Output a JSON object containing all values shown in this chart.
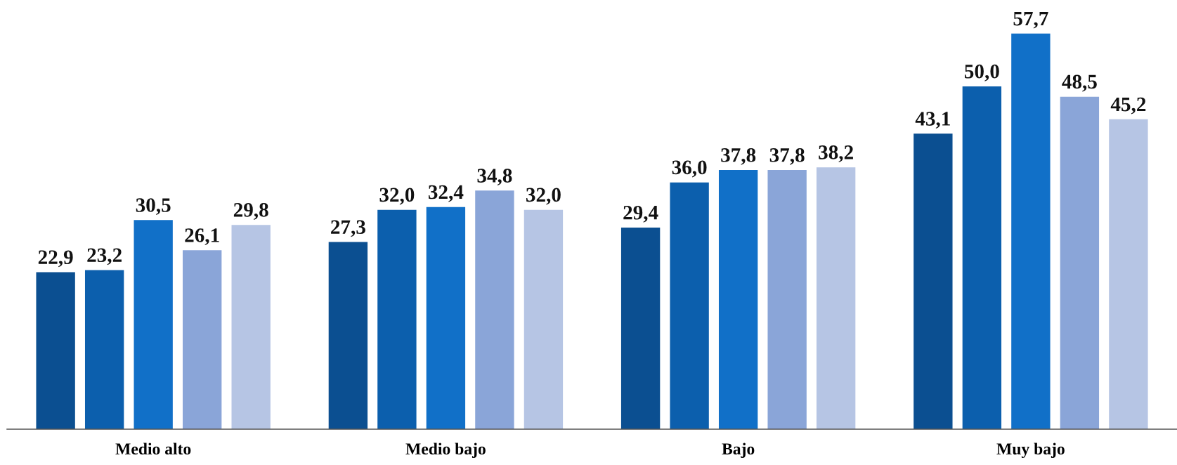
{
  "chart_data": {
    "type": "bar",
    "categories": [
      "Medio alto",
      "Medio bajo",
      "Bajo",
      "Muy bajo"
    ],
    "grid": false,
    "tick_labels": "x",
    "series": [
      {
        "color": "#0b4f91",
        "values": [
          22.9,
          27.3,
          29.4,
          43.1
        ],
        "value_labels": [
          "22,9",
          "27,3",
          "29,4",
          "43,1"
        ]
      },
      {
        "color": "#0c5fad",
        "values": [
          23.2,
          32.0,
          36.0,
          50.0
        ],
        "value_labels": [
          "23,2",
          "32,0",
          "36,0",
          "50,0"
        ]
      },
      {
        "color": "#1170c8",
        "values": [
          30.5,
          32.4,
          37.8,
          57.7
        ],
        "value_labels": [
          "30,5",
          "32,4",
          "37,8",
          "57,7"
        ]
      },
      {
        "color": "#8aa5d8",
        "values": [
          26.1,
          34.8,
          37.8,
          48.5
        ],
        "value_labels": [
          "26,1",
          "34,8",
          "37,8",
          "48,5"
        ]
      },
      {
        "color": "#b6c5e4",
        "values": [
          29.8,
          32.0,
          38.2,
          45.2
        ],
        "value_labels": [
          "29,8",
          "32,0",
          "38,2",
          "45,2"
        ]
      }
    ]
  }
}
